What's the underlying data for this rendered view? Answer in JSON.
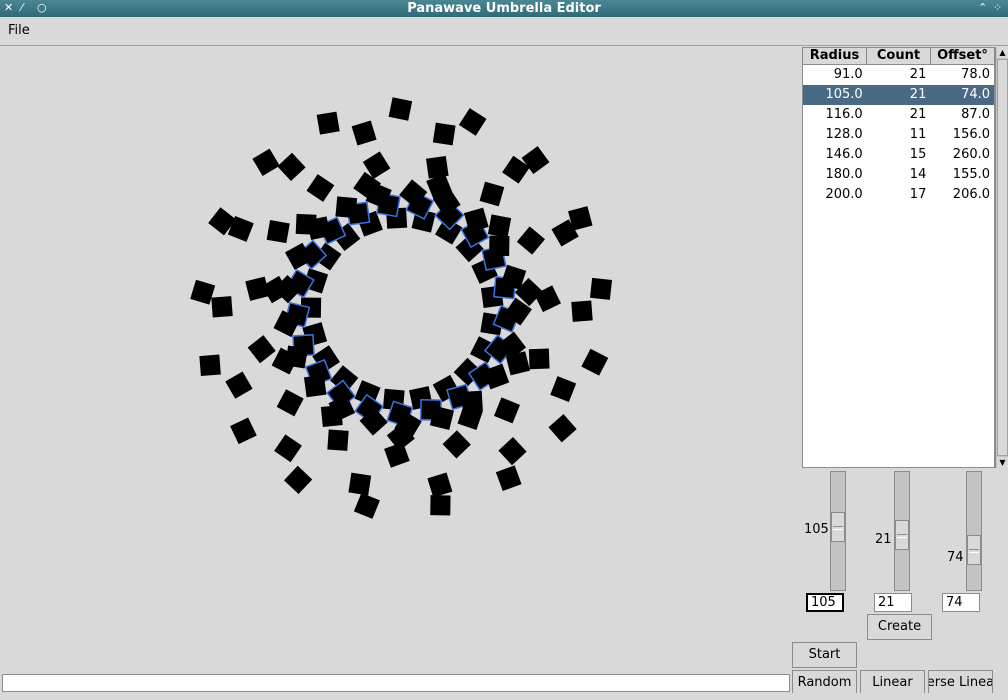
{
  "window": {
    "title": "Panawave Umbrella Editor"
  },
  "menu": {
    "file_label": "File"
  },
  "table": {
    "headers": [
      "Radius",
      "Count",
      "Offset°"
    ],
    "rows": [
      [
        "91.0",
        "21",
        "78.0"
      ],
      [
        "105.0",
        "21",
        "74.0"
      ],
      [
        "116.0",
        "21",
        "87.0"
      ],
      [
        "128.0",
        "11",
        "156.0"
      ],
      [
        "146.0",
        "15",
        "260.0"
      ],
      [
        "180.0",
        "14",
        "155.0"
      ],
      [
        "200.0",
        "17",
        "206.0"
      ]
    ],
    "selected_index": 1
  },
  "sliders": {
    "radius": {
      "value": "105",
      "level": 0.45
    },
    "count": {
      "value": "21",
      "level": 0.55
    },
    "offset": {
      "value": "74",
      "level": 0.72
    }
  },
  "entries": {
    "radius": "105",
    "count": "21",
    "offset": "74"
  },
  "buttons": {
    "create": "Create",
    "start": "Start",
    "random": "Random",
    "linear": "Linear",
    "inverse_linear": "Inverse Linear"
  },
  "status": {
    "text": ""
  },
  "colors": {
    "selection": "#4a6984",
    "highlight_ring": "#3d73e0",
    "square": "#000000"
  },
  "icons": [
    "close-icon",
    "minimize-icon",
    "maximize-icon",
    "shade-icon",
    "menu-grip-icon"
  ]
}
